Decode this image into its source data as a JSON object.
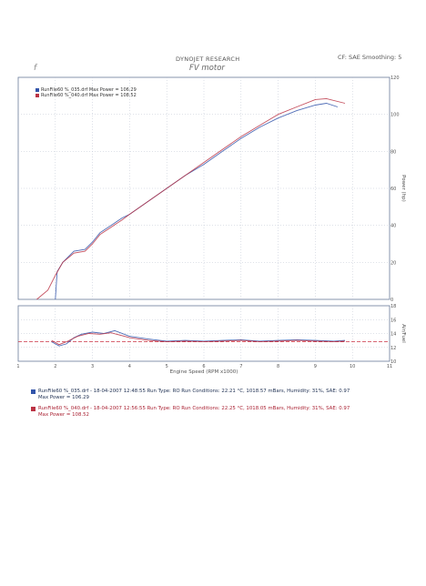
{
  "header": {
    "title_small": "DYNOJET RESEARCH",
    "title_big": "FV motor",
    "correction": "CF: SAE  Smoothing: 5",
    "corner_mark": "f"
  },
  "legend": {
    "items": [
      {
        "label": "RunFile60 %_035.drf Max Power = 106.29",
        "color": "#3355aa"
      },
      {
        "label": "RunFile60 %_040.drf Max Power = 108.52",
        "color": "#bb3344"
      }
    ]
  },
  "runs": [
    {
      "line1": "RunFile60 %_035.drf - 18-04-2007 12:48:55  Run Type: RO  Run Conditions: 22.21 °C, 1018.57 mBars,  Humidity:  31%, SAE: 0.97",
      "line2": "Max Power = 106.29",
      "color": "#3355aa"
    },
    {
      "line1": "RunFile60 %_040.drf - 18-04-2007 12:56:55  Run Type: RO  Run Conditions: 22.25 °C, 1018.05 mBars,  Humidity:  31%, SAE: 0.97",
      "line2": "Max Power = 108.52",
      "color": "#bb3344"
    }
  ],
  "chart_data": [
    {
      "type": "line",
      "title": "",
      "ylabel": "Power (hp)",
      "xlim": [
        1,
        11
      ],
      "ylim": [
        0,
        120
      ],
      "y_ticks": [
        0,
        20,
        40,
        60,
        80,
        100,
        120
      ],
      "grid": true,
      "series": [
        {
          "name": "RunFile60 %_035.drf",
          "color": "#3355aa",
          "x": [
            2.0,
            2.05,
            2.2,
            2.5,
            2.8,
            3.0,
            3.2,
            3.5,
            3.8,
            4.0,
            4.5,
            5.0,
            5.5,
            6.0,
            6.5,
            7.0,
            7.5,
            8.0,
            8.5,
            9.0,
            9.3,
            9.6
          ],
          "y": [
            0,
            15,
            20,
            26,
            27,
            31,
            36,
            40,
            44,
            46,
            53,
            60,
            67,
            73,
            80,
            87,
            93,
            98,
            102,
            105,
            106,
            104
          ]
        },
        {
          "name": "RunFile60 %_040.drf",
          "color": "#bb3344",
          "x": [
            1.5,
            1.8,
            2.0,
            2.2,
            2.5,
            2.8,
            3.0,
            3.2,
            3.5,
            3.8,
            4.0,
            4.5,
            5.0,
            5.5,
            6.0,
            6.5,
            7.0,
            7.5,
            8.0,
            8.5,
            9.0,
            9.3,
            9.8
          ],
          "y": [
            0,
            5,
            13,
            20,
            25,
            26,
            30,
            35,
            39,
            43,
            46,
            53,
            60,
            67,
            74,
            81,
            88,
            94,
            100,
            104,
            108,
            108.5,
            106
          ]
        }
      ]
    },
    {
      "type": "line",
      "ylabel": "Air/Fuel",
      "xlabel": "Engine Speed (RPM x1000)",
      "xlim": [
        1,
        11
      ],
      "x_ticks": [
        1,
        2,
        3,
        4,
        5,
        6,
        7,
        8,
        9,
        10,
        11
      ],
      "ylim": [
        10,
        18
      ],
      "y_ticks": [
        10,
        12,
        14,
        16,
        18
      ],
      "grid": true,
      "reference": {
        "value": 12.8,
        "color": "#cc3344"
      },
      "series": [
        {
          "name": "RunFile60 %_035.drf",
          "color": "#3355aa",
          "x": [
            1.9,
            2.1,
            2.3,
            2.5,
            2.7,
            3.0,
            3.3,
            3.6,
            4.0,
            4.5,
            5.0,
            5.5,
            6.0,
            6.5,
            7.0,
            7.5,
            8.0,
            8.5,
            9.0,
            9.5,
            9.8
          ],
          "y": [
            12.8,
            12.2,
            12.5,
            13.4,
            13.9,
            14.2,
            14.0,
            14.4,
            13.6,
            13.2,
            12.9,
            13.0,
            12.9,
            13.0,
            13.1,
            12.9,
            13.0,
            13.1,
            13.0,
            12.9,
            13.0
          ]
        },
        {
          "name": "RunFile60 %_040.drf",
          "color": "#bb3344",
          "x": [
            1.9,
            2.1,
            2.3,
            2.6,
            2.9,
            3.2,
            3.5,
            4.0,
            4.5,
            5.0,
            5.5,
            6.0,
            6.5,
            7.0,
            7.5,
            8.0,
            8.5,
            9.0,
            9.5,
            9.8
          ],
          "y": [
            13.0,
            12.4,
            12.8,
            13.6,
            14.0,
            13.9,
            14.1,
            13.4,
            13.0,
            12.8,
            12.9,
            12.8,
            12.9,
            13.0,
            12.8,
            12.9,
            13.0,
            12.9,
            12.8,
            12.9
          ]
        }
      ]
    }
  ]
}
